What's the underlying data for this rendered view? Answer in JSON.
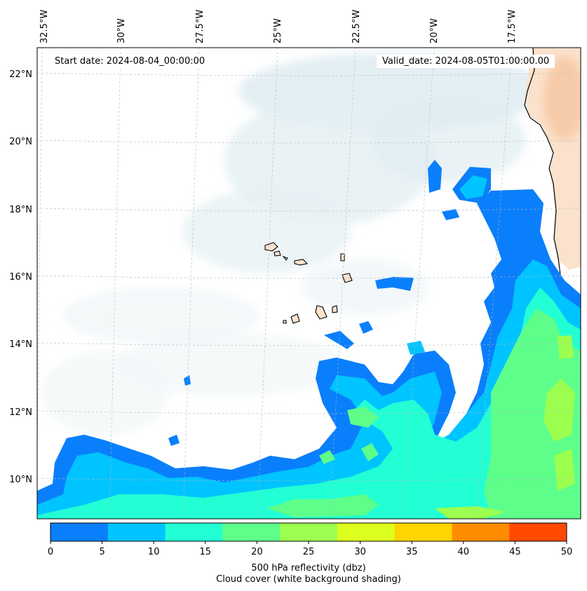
{
  "map": {
    "start_date": "Start date: 2024-08-04_00:00:00",
    "valid_date": "Valid_date: 2024-08-05T01:00:00.00",
    "lon_labels": [
      "32.5°W",
      "30°W",
      "27.5°W",
      "25°W",
      "22.5°W",
      "20°W",
      "17.5°W"
    ],
    "lat_labels": [
      "22°N",
      "20°N",
      "18°N",
      "16°N",
      "14°N",
      "12°N",
      "10°N"
    ],
    "colorbar": {
      "ticks": [
        "0",
        "5",
        "10",
        "15",
        "20",
        "25",
        "30",
        "35",
        "40",
        "45",
        "50"
      ],
      "colors": [
        "#0a7ffc",
        "#00c4ff",
        "#22ffd4",
        "#5dff8a",
        "#9cff4f",
        "#dcff1e",
        "#ffd400",
        "#ff8c00",
        "#ff4a00"
      ],
      "label_line1": "500 hPa reflectivity (dbz)",
      "label_line2": "Cloud cover (white background shading)"
    }
  }
}
